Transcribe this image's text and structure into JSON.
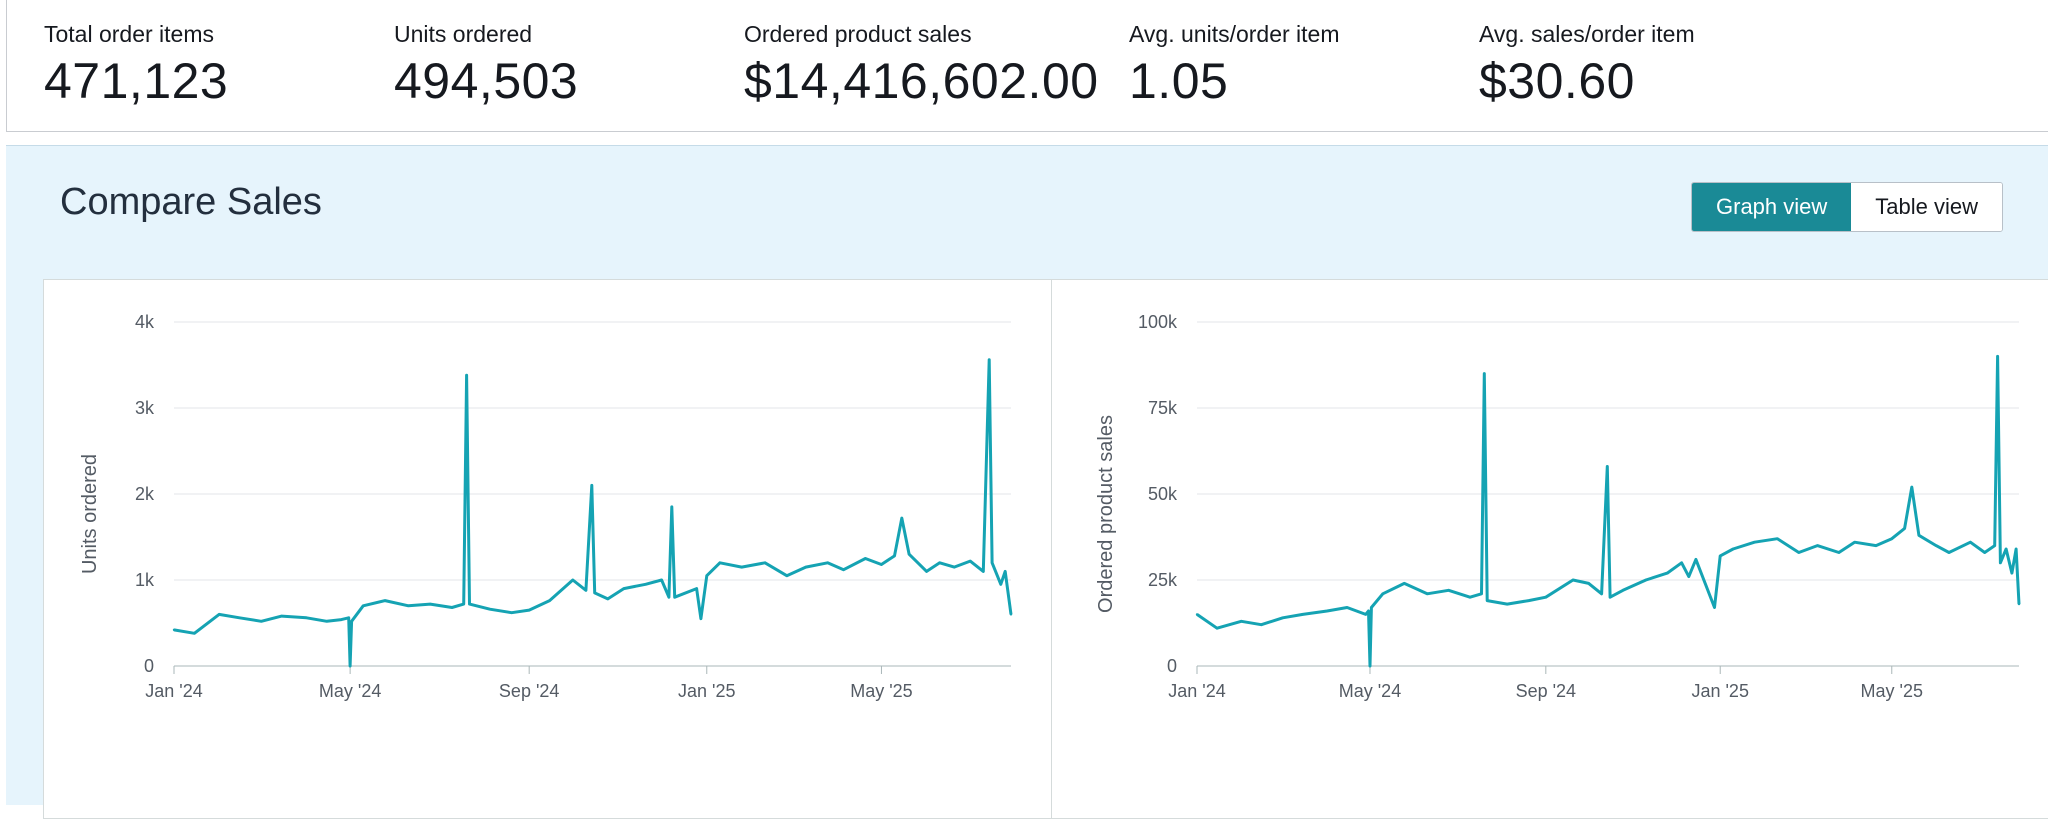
{
  "metrics": [
    {
      "label": "Total order items",
      "value": "471,123"
    },
    {
      "label": "Units ordered",
      "value": "494,503"
    },
    {
      "label": "Ordered product sales",
      "value": "$14,416,602.00"
    },
    {
      "label": "Avg. units/order item",
      "value": "1.05"
    },
    {
      "label": "Avg. sales/order item",
      "value": "$30.60"
    }
  ],
  "compare": {
    "title": "Compare Sales",
    "toggle": {
      "graph_label": "Graph view",
      "table_label": "Table view",
      "active": "graph"
    }
  },
  "colors": {
    "accent": "#1a8a96",
    "line": "#15a3b3",
    "panel_bg": "#e6f4fc"
  },
  "chart_data": [
    {
      "type": "line",
      "ylabel": "Units ordered",
      "ylim": [
        0,
        4000
      ],
      "y_ticks": [
        0,
        1000,
        2000,
        3000,
        4000
      ],
      "y_tick_labels": [
        "0",
        "1k",
        "2k",
        "3k",
        "4k"
      ],
      "x_ticks": [
        "2024-01-01",
        "2024-05-01",
        "2024-09-01",
        "2025-01-01",
        "2025-05-01"
      ],
      "x_tick_labels": [
        "Jan '24",
        "May '24",
        "Sep '24",
        "Jan '25",
        "May '25"
      ],
      "xlim": [
        "2024-01-01",
        "2025-07-29"
      ],
      "grid": true,
      "series": [
        {
          "color": "#15a3b3",
          "points": [
            [
              "2024-01-01",
              420
            ],
            [
              "2024-01-15",
              380
            ],
            [
              "2024-02-01",
              600
            ],
            [
              "2024-02-15",
              560
            ],
            [
              "2024-03-01",
              520
            ],
            [
              "2024-03-15",
              580
            ],
            [
              "2024-04-01",
              560
            ],
            [
              "2024-04-15",
              520
            ],
            [
              "2024-04-25",
              540
            ],
            [
              "2024-04-30",
              560
            ],
            [
              "2024-05-01",
              0
            ],
            [
              "2024-05-02",
              520
            ],
            [
              "2024-05-10",
              700
            ],
            [
              "2024-05-25",
              760
            ],
            [
              "2024-06-10",
              700
            ],
            [
              "2024-06-25",
              720
            ],
            [
              "2024-07-10",
              680
            ],
            [
              "2024-07-18",
              720
            ],
            [
              "2024-07-20",
              3380
            ],
            [
              "2024-07-22",
              720
            ],
            [
              "2024-08-05",
              660
            ],
            [
              "2024-08-20",
              620
            ],
            [
              "2024-09-01",
              650
            ],
            [
              "2024-09-15",
              760
            ],
            [
              "2024-10-01",
              1000
            ],
            [
              "2024-10-10",
              880
            ],
            [
              "2024-10-14",
              2100
            ],
            [
              "2024-10-16",
              850
            ],
            [
              "2024-10-25",
              780
            ],
            [
              "2024-11-05",
              900
            ],
            [
              "2024-11-20",
              950
            ],
            [
              "2024-12-01",
              1000
            ],
            [
              "2024-12-06",
              800
            ],
            [
              "2024-12-08",
              1850
            ],
            [
              "2024-12-10",
              800
            ],
            [
              "2024-12-25",
              900
            ],
            [
              "2024-12-28",
              550
            ],
            [
              "2025-01-01",
              1050
            ],
            [
              "2025-01-10",
              1200
            ],
            [
              "2025-01-25",
              1150
            ],
            [
              "2025-02-10",
              1200
            ],
            [
              "2025-02-25",
              1050
            ],
            [
              "2025-03-10",
              1150
            ],
            [
              "2025-03-25",
              1200
            ],
            [
              "2025-04-05",
              1120
            ],
            [
              "2025-04-20",
              1250
            ],
            [
              "2025-05-01",
              1180
            ],
            [
              "2025-05-10",
              1280
            ],
            [
              "2025-05-15",
              1720
            ],
            [
              "2025-05-20",
              1300
            ],
            [
              "2025-06-01",
              1100
            ],
            [
              "2025-06-10",
              1200
            ],
            [
              "2025-06-20",
              1150
            ],
            [
              "2025-07-01",
              1220
            ],
            [
              "2025-07-10",
              1100
            ],
            [
              "2025-07-14",
              3560
            ],
            [
              "2025-07-16",
              1200
            ],
            [
              "2025-07-22",
              950
            ],
            [
              "2025-07-25",
              1100
            ],
            [
              "2025-07-29",
              600
            ]
          ]
        }
      ]
    },
    {
      "type": "line",
      "ylabel": "Ordered product sales",
      "ylim": [
        0,
        100000
      ],
      "y_ticks": [
        0,
        25000,
        50000,
        75000,
        100000
      ],
      "y_tick_labels": [
        "0",
        "25k",
        "50k",
        "75k",
        "100k"
      ],
      "x_ticks": [
        "2024-01-01",
        "2024-05-01",
        "2024-09-01",
        "2025-01-01",
        "2025-05-01"
      ],
      "x_tick_labels": [
        "Jan '24",
        "May '24",
        "Sep '24",
        "Jan '25",
        "May '25"
      ],
      "xlim": [
        "2024-01-01",
        "2025-07-29"
      ],
      "grid": true,
      "series": [
        {
          "color": "#15a3b3",
          "points": [
            [
              "2024-01-01",
              15000
            ],
            [
              "2024-01-15",
              11000
            ],
            [
              "2024-02-01",
              13000
            ],
            [
              "2024-02-15",
              12000
            ],
            [
              "2024-03-01",
              14000
            ],
            [
              "2024-03-15",
              15000
            ],
            [
              "2024-04-01",
              16000
            ],
            [
              "2024-04-15",
              17000
            ],
            [
              "2024-04-28",
              15000
            ],
            [
              "2024-04-30",
              16000
            ],
            [
              "2024-05-01",
              0
            ],
            [
              "2024-05-02",
              17000
            ],
            [
              "2024-05-10",
              21000
            ],
            [
              "2024-05-25",
              24000
            ],
            [
              "2024-06-10",
              21000
            ],
            [
              "2024-06-25",
              22000
            ],
            [
              "2024-07-10",
              20000
            ],
            [
              "2024-07-18",
              21000
            ],
            [
              "2024-07-20",
              85000
            ],
            [
              "2024-07-22",
              19000
            ],
            [
              "2024-08-05",
              18000
            ],
            [
              "2024-08-20",
              19000
            ],
            [
              "2024-09-01",
              20000
            ],
            [
              "2024-09-20",
              25000
            ],
            [
              "2024-10-01",
              24000
            ],
            [
              "2024-10-10",
              21000
            ],
            [
              "2024-10-14",
              58000
            ],
            [
              "2024-10-16",
              20000
            ],
            [
              "2024-10-25",
              22000
            ],
            [
              "2024-11-10",
              25000
            ],
            [
              "2024-11-25",
              27000
            ],
            [
              "2024-12-05",
              30000
            ],
            [
              "2024-12-10",
              26000
            ],
            [
              "2024-12-15",
              31000
            ],
            [
              "2024-12-28",
              17000
            ],
            [
              "2025-01-01",
              32000
            ],
            [
              "2025-01-10",
              34000
            ],
            [
              "2025-01-25",
              36000
            ],
            [
              "2025-02-10",
              37000
            ],
            [
              "2025-02-25",
              33000
            ],
            [
              "2025-03-10",
              35000
            ],
            [
              "2025-03-25",
              33000
            ],
            [
              "2025-04-05",
              36000
            ],
            [
              "2025-04-20",
              35000
            ],
            [
              "2025-05-01",
              37000
            ],
            [
              "2025-05-10",
              40000
            ],
            [
              "2025-05-15",
              52000
            ],
            [
              "2025-05-20",
              38000
            ],
            [
              "2025-06-01",
              35000
            ],
            [
              "2025-06-10",
              33000
            ],
            [
              "2025-06-25",
              36000
            ],
            [
              "2025-07-05",
              33000
            ],
            [
              "2025-07-12",
              35000
            ],
            [
              "2025-07-14",
              90000
            ],
            [
              "2025-07-16",
              30000
            ],
            [
              "2025-07-20",
              34000
            ],
            [
              "2025-07-24",
              27000
            ],
            [
              "2025-07-27",
              34000
            ],
            [
              "2025-07-29",
              18000
            ]
          ]
        }
      ]
    }
  ]
}
